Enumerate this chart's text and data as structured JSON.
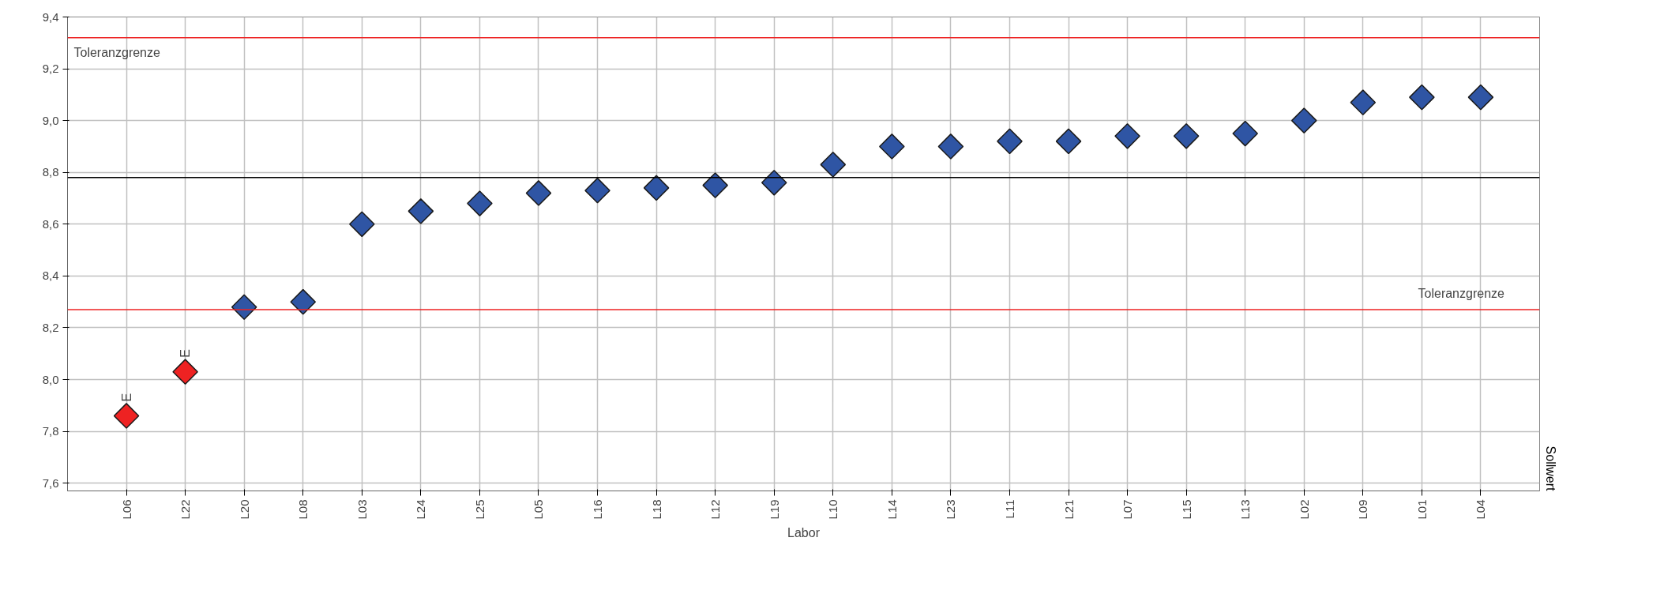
{
  "chart_data": {
    "type": "scatter",
    "xlabel": "Labor",
    "categories": [
      "L06",
      "L22",
      "L20",
      "L08",
      "L03",
      "L24",
      "L25",
      "L05",
      "L16",
      "L18",
      "L12",
      "L19",
      "L10",
      "L14",
      "L23",
      "L11",
      "L21",
      "L07",
      "L15",
      "L13",
      "L02",
      "L09",
      "L01",
      "L04"
    ],
    "values": [
      7.86,
      8.03,
      8.28,
      8.3,
      8.6,
      8.65,
      8.68,
      8.72,
      8.73,
      8.74,
      8.75,
      8.76,
      8.83,
      8.9,
      8.9,
      8.92,
      8.92,
      8.94,
      8.94,
      8.95,
      9.0,
      9.07,
      9.09,
      9.09
    ],
    "colors": [
      "#ee2222",
      "#ee2222",
      "#2f55a4",
      "#2f55a4",
      "#2f55a4",
      "#2f55a4",
      "#2f55a4",
      "#2f55a4",
      "#2f55a4",
      "#2f55a4",
      "#2f55a4",
      "#2f55a4",
      "#2f55a4",
      "#2f55a4",
      "#2f55a4",
      "#2f55a4",
      "#2f55a4",
      "#2f55a4",
      "#2f55a4",
      "#2f55a4",
      "#2f55a4",
      "#2f55a4",
      "#2f55a4",
      "#2f55a4"
    ],
    "marker": "diamond",
    "ylim": [
      7.57,
      9.4
    ],
    "yticks": [
      {
        "value": 7.6,
        "label": "7,6"
      },
      {
        "value": 7.8,
        "label": "7,8"
      },
      {
        "value": 8.0,
        "label": "8,0"
      },
      {
        "value": 8.2,
        "label": "8,2"
      },
      {
        "value": 8.4,
        "label": "8,4"
      },
      {
        "value": 8.6,
        "label": "8,6"
      },
      {
        "value": 8.8,
        "label": "8,8"
      },
      {
        "value": 9.0,
        "label": "9,0"
      },
      {
        "value": 9.2,
        "label": "9,2"
      },
      {
        "value": 9.4,
        "label": "9,4"
      }
    ],
    "grid": true,
    "ref_lines": [
      {
        "axis": "y",
        "value": 9.32,
        "label": "Toleranzgrenze",
        "color": "#ee2222"
      },
      {
        "axis": "y",
        "value": 8.78,
        "label": "Sollwert",
        "color": "#000000"
      },
      {
        "axis": "y",
        "value": 8.27,
        "label": "Toleranzgrenze",
        "color": "#ee2222"
      }
    ],
    "annotations": [
      {
        "text": "E",
        "x": "L06",
        "y": 7.86
      },
      {
        "text": "E",
        "x": "L22",
        "y": 8.03
      }
    ]
  }
}
